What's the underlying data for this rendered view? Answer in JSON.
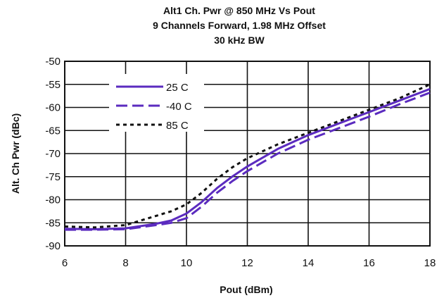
{
  "chart_data": {
    "type": "line",
    "title_lines": [
      "Alt1 Ch. Pwr @ 850 MHz Vs Pout",
      "9 Channels Forward, 1.98 MHz Offset",
      "30 kHz BW"
    ],
    "xlabel": "Pout (dBm)",
    "ylabel": "Alt. Ch Pwr (dBc)",
    "xlim": [
      6,
      18
    ],
    "ylim": [
      -90,
      -50
    ],
    "xticks": [
      6,
      8,
      10,
      12,
      14,
      16,
      18
    ],
    "yticks": [
      -50,
      -55,
      -60,
      -65,
      -70,
      -75,
      -80,
      -85,
      -90
    ],
    "grid": true,
    "legend_position": "upper-left",
    "series": [
      {
        "name": "25 C",
        "style": "solid",
        "color": "#5b2bbf",
        "x": [
          6,
          7,
          8,
          9,
          9.5,
          10,
          10.5,
          11,
          11.5,
          12,
          13,
          14,
          15,
          16,
          17,
          18
        ],
        "y": [
          -86.3,
          -86.4,
          -86.2,
          -85.2,
          -84.5,
          -83,
          -80.5,
          -77.5,
          -75,
          -72.8,
          -69,
          -66,
          -63.5,
          -61,
          -58.5,
          -56
        ]
      },
      {
        "name": "-40 C",
        "style": "dashed",
        "color": "#5b2bbf",
        "x": [
          6,
          7,
          8,
          9,
          9.5,
          10,
          10.5,
          11,
          11.5,
          12,
          13,
          14,
          15,
          16,
          17,
          18
        ],
        "y": [
          -86.5,
          -86.5,
          -86.4,
          -85.5,
          -85,
          -84,
          -81.5,
          -78.5,
          -76,
          -73.8,
          -70,
          -67,
          -64.5,
          -62,
          -59.3,
          -56.8
        ]
      },
      {
        "name": "85 C",
        "style": "dotted",
        "color": "#111111",
        "x": [
          6,
          7,
          8,
          9,
          9.5,
          10,
          10.5,
          11,
          11.5,
          12,
          13,
          14,
          15,
          16,
          17,
          18
        ],
        "y": [
          -85.8,
          -86,
          -85.5,
          -83.5,
          -82.5,
          -81,
          -78.5,
          -75.5,
          -73,
          -71,
          -68,
          -65.5,
          -63,
          -60.5,
          -58,
          -55
        ]
      }
    ]
  }
}
